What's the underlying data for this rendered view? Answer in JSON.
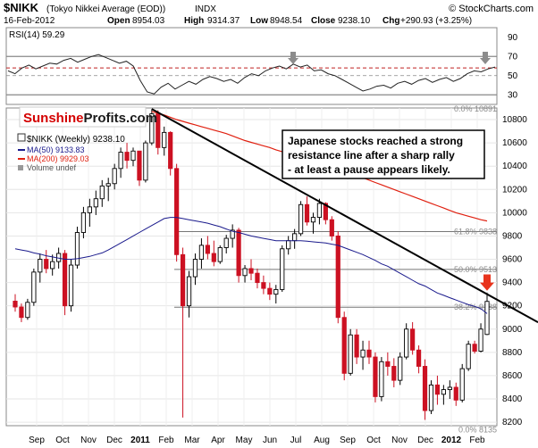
{
  "header": {
    "symbol": "$NIKK",
    "name": "(Tokyo Nikkei Average (EOD))",
    "exchange": "INDX",
    "credit": "© StockCharts.com",
    "date": "16-Feb-2012",
    "open_label": "Open",
    "open": "8954.03",
    "high_label": "High",
    "high": "9314.37",
    "low_label": "Low",
    "low": "8948.54",
    "close_label": "Close",
    "close": "9238.10",
    "chg_label": "Chg",
    "chg": "+290.93 (+3.25%)"
  },
  "logo": {
    "part1": "Sunshine",
    "part2": "Profits.com"
  },
  "annotation": "Japanese stocks reached a strong resistance line after a sharp rally - at least a pause appears likely.",
  "colors": {
    "up_candle": "#ffffff",
    "down_candle": "#cc1122",
    "ma50": "#1a1a8c",
    "ma200": "#e02010",
    "resistance": "#000000",
    "arrow_red": "#e8331c",
    "arrow_gray": "#8c8c8c",
    "logo_red": "#d40000",
    "rsi_band_red": "#c02020"
  },
  "chart_data": [
    {
      "type": "line",
      "title": "RSI(14) 59.29",
      "ylim": [
        20,
        100
      ],
      "yticks": [
        30,
        50,
        70,
        90
      ],
      "reference_lines": [
        70,
        58,
        50,
        30
      ],
      "arrows_at": [
        "Jul",
        "Feb"
      ],
      "values": [
        55,
        52,
        58,
        61,
        57,
        60,
        63,
        62,
        66,
        68,
        64,
        67,
        70,
        72,
        69,
        66,
        63,
        65,
        60,
        45,
        33,
        31,
        38,
        42,
        36,
        40,
        44,
        41,
        46,
        49,
        47,
        44,
        46,
        42,
        48,
        52,
        50,
        55,
        58,
        60,
        57,
        62,
        59,
        61,
        55,
        56,
        52,
        50,
        46,
        42,
        38,
        34,
        36,
        39,
        40,
        37,
        42,
        44,
        41,
        45,
        47,
        43,
        46,
        48,
        44,
        47,
        52,
        55,
        54,
        57,
        59
      ]
    },
    {
      "type": "candlestick",
      "legend": {
        "price": "$NIKK (Weekly) 9238.10",
        "ma50": "MA(50) 9133.83",
        "ma200": "MA(200) 9929.03",
        "volume": "Volume undef"
      },
      "ylim": [
        8170,
        10900
      ],
      "yticks": [
        8200,
        8400,
        8600,
        8800,
        9000,
        9200,
        9400,
        9600,
        9800,
        10000,
        10200,
        10400,
        10600,
        10800
      ],
      "x_labels": [
        "Sep",
        "Oct",
        "Nov",
        "Dec",
        "2011",
        "Feb",
        "Mar",
        "Apr",
        "May",
        "Jun",
        "Jul",
        "Aug",
        "Sep",
        "Oct",
        "Nov",
        "Dec",
        "2012",
        "Feb"
      ],
      "fib_levels": [
        {
          "label": "0.0% 10891",
          "value": 10891
        },
        {
          "label": "61.8% 9838",
          "value": 9838
        },
        {
          "label": "50.0% 9513",
          "value": 9513
        },
        {
          "label": "38.2% 9188",
          "value": 9188
        },
        {
          "label": "0.0% 8135",
          "value": 8135
        }
      ],
      "resistance_line": {
        "from": [
          "Feb 2011",
          10891
        ],
        "to": [
          "Feb 2012",
          9300
        ]
      },
      "candles": [
        [
          9240,
          9300,
          9150,
          9190
        ],
        [
          9190,
          9220,
          9060,
          9100
        ],
        [
          9100,
          9260,
          9080,
          9230
        ],
        [
          9230,
          9520,
          9200,
          9490
        ],
        [
          9490,
          9650,
          9400,
          9600
        ],
        [
          9600,
          9680,
          9480,
          9520
        ],
        [
          9520,
          9640,
          9460,
          9580
        ],
        [
          9580,
          9700,
          9520,
          9650
        ],
        [
          9650,
          9680,
          9120,
          9200
        ],
        [
          9200,
          9600,
          9150,
          9550
        ],
        [
          9550,
          9880,
          9520,
          9830
        ],
        [
          9830,
          10050,
          9780,
          10000
        ],
        [
          10000,
          10120,
          9880,
          10050
        ],
        [
          10050,
          10190,
          9980,
          10120
        ],
        [
          10120,
          10280,
          10050,
          10230
        ],
        [
          10230,
          10300,
          10100,
          10250
        ],
        [
          10250,
          10420,
          10200,
          10380
        ],
        [
          10380,
          10560,
          10300,
          10520
        ],
        [
          10520,
          10600,
          10380,
          10450
        ],
        [
          10450,
          10560,
          10400,
          10530
        ],
        [
          10530,
          10520,
          10230,
          10280
        ],
        [
          10280,
          10620,
          10260,
          10600
        ],
        [
          10600,
          10890,
          10580,
          10850
        ],
        [
          10850,
          10880,
          10500,
          10560
        ],
        [
          10560,
          10740,
          10490,
          10690
        ],
        [
          10690,
          10700,
          10320,
          10380
        ],
        [
          10380,
          10420,
          9580,
          9640
        ],
        [
          9640,
          9700,
          8240,
          9200
        ],
        [
          9200,
          9500,
          9100,
          9450
        ],
        [
          9450,
          9650,
          9380,
          9600
        ],
        [
          9600,
          9780,
          9520,
          9720
        ],
        [
          9720,
          9800,
          9600,
          9650
        ],
        [
          9650,
          9760,
          9540,
          9580
        ],
        [
          9580,
          9720,
          9560,
          9700
        ],
        [
          9700,
          9810,
          9650,
          9780
        ],
        [
          9780,
          9900,
          9700,
          9850
        ],
        [
          9850,
          9870,
          9400,
          9460
        ],
        [
          9460,
          9550,
          9400,
          9520
        ],
        [
          9520,
          9600,
          9420,
          9480
        ],
        [
          9480,
          9520,
          9350,
          9400
        ],
        [
          9400,
          9460,
          9300,
          9350
        ],
        [
          9350,
          9400,
          9250,
          9300
        ],
        [
          9300,
          9380,
          9220,
          9340
        ],
        [
          9340,
          9720,
          9320,
          9690
        ],
        [
          9690,
          9800,
          9640,
          9760
        ],
        [
          9760,
          9860,
          9690,
          9820
        ],
        [
          9820,
          10100,
          9800,
          10070
        ],
        [
          10070,
          10140,
          9890,
          9920
        ],
        [
          9920,
          10000,
          9820,
          9960
        ],
        [
          9960,
          10120,
          9900,
          10080
        ],
        [
          10080,
          10090,
          9900,
          9940
        ],
        [
          9940,
          9970,
          9760,
          9800
        ],
        [
          9800,
          9840,
          9050,
          9100
        ],
        [
          9100,
          9150,
          8560,
          8620
        ],
        [
          8620,
          9000,
          8600,
          8950
        ],
        [
          8950,
          9000,
          8700,
          8760
        ],
        [
          8760,
          8900,
          8650,
          8820
        ],
        [
          8820,
          8900,
          8700,
          8760
        ],
        [
          8760,
          8800,
          8370,
          8420
        ],
        [
          8420,
          8760,
          8380,
          8720
        ],
        [
          8720,
          8800,
          8600,
          8680
        ],
        [
          8680,
          8750,
          8500,
          8560
        ],
        [
          8560,
          8800,
          8520,
          8760
        ],
        [
          8760,
          9050,
          8740,
          9000
        ],
        [
          9000,
          9060,
          8780,
          8820
        ],
        [
          8820,
          8860,
          8620,
          8680
        ],
        [
          8680,
          8740,
          8220,
          8300
        ],
        [
          8300,
          8560,
          8270,
          8520
        ],
        [
          8520,
          8600,
          8350,
          8440
        ],
        [
          8440,
          8520,
          8350,
          8480
        ],
        [
          8480,
          8560,
          8400,
          8500
        ],
        [
          8500,
          8540,
          8340,
          8390
        ],
        [
          8390,
          8700,
          8370,
          8660
        ],
        [
          8660,
          8900,
          8640,
          8870
        ],
        [
          8870,
          8900,
          8790,
          8810
        ],
        [
          8810,
          9050,
          8800,
          9000
        ],
        [
          8954,
          9314,
          8948,
          9238
        ]
      ],
      "ma50": [
        9690,
        9680,
        9670,
        9655,
        9645,
        9630,
        9620,
        9610,
        9600,
        9600,
        9605,
        9615,
        9625,
        9640,
        9655,
        9680,
        9710,
        9740,
        9770,
        9800,
        9830,
        9860,
        9890,
        9920,
        9950,
        9960,
        9960,
        9950,
        9940,
        9930,
        9920,
        9910,
        9895,
        9880,
        9860,
        9840,
        9830,
        9815,
        9800,
        9790,
        9780,
        9770,
        9760,
        9760,
        9760,
        9760,
        9760,
        9755,
        9750,
        9745,
        9740,
        9730,
        9720,
        9700,
        9680,
        9660,
        9640,
        9615,
        9590,
        9560,
        9540,
        9510,
        9480,
        9450,
        9420,
        9390,
        9370,
        9340,
        9310,
        9290,
        9270,
        9250,
        9230,
        9210,
        9195,
        9175,
        9133
      ],
      "ma200": [
        null,
        null,
        null,
        null,
        null,
        null,
        null,
        null,
        null,
        null,
        null,
        null,
        null,
        null,
        null,
        null,
        null,
        null,
        null,
        null,
        null,
        null,
        10870,
        10855,
        10840,
        10820,
        10800,
        10785,
        10770,
        10755,
        10740,
        10725,
        10710,
        10695,
        10680,
        10660,
        10640,
        10620,
        10605,
        10590,
        10575,
        10560,
        10540,
        10525,
        10510,
        10495,
        10480,
        10465,
        10450,
        10435,
        10420,
        10400,
        10380,
        10360,
        10340,
        10320,
        10300,
        10280,
        10260,
        10240,
        10220,
        10200,
        10180,
        10160,
        10140,
        10120,
        10100,
        10080,
        10060,
        10040,
        10020,
        10000,
        9985,
        9970,
        9955,
        9940,
        9929
      ]
    }
  ]
}
